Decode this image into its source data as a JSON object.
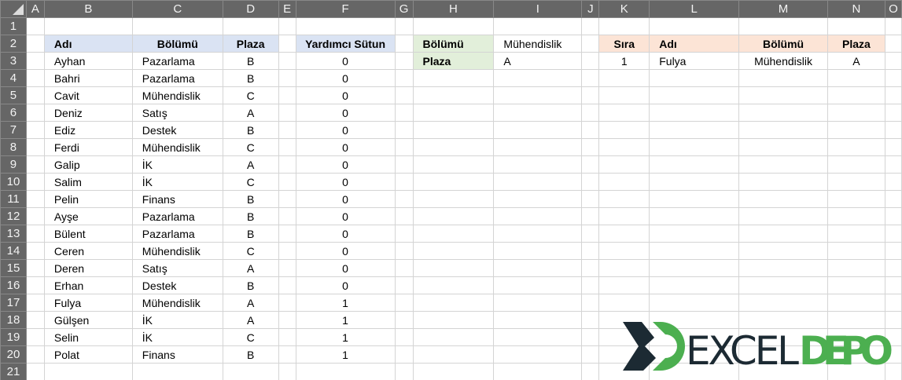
{
  "columns": [
    "A",
    "B",
    "C",
    "D",
    "E",
    "F",
    "G",
    "H",
    "I",
    "J",
    "K",
    "L",
    "M",
    "N",
    "O"
  ],
  "main_table": {
    "headers": [
      "Adı",
      "Bölümü",
      "Plaza",
      "Yardımcı Sütun"
    ],
    "rows": [
      [
        "Ayhan",
        "Pazarlama",
        "B",
        "0"
      ],
      [
        "Bahri",
        "Pazarlama",
        "B",
        "0"
      ],
      [
        "Cavit",
        "Mühendislik",
        "C",
        "0"
      ],
      [
        "Deniz",
        "Satış",
        "A",
        "0"
      ],
      [
        "Ediz",
        "Destek",
        "B",
        "0"
      ],
      [
        "Ferdi",
        "Mühendislik",
        "C",
        "0"
      ],
      [
        "Galip",
        "İK",
        "A",
        "0"
      ],
      [
        "Salim",
        "İK",
        "C",
        "0"
      ],
      [
        "Pelin",
        "Finans",
        "B",
        "0"
      ],
      [
        "Ayşe",
        "Pazarlama",
        "B",
        "0"
      ],
      [
        "Bülent",
        "Pazarlama",
        "B",
        "0"
      ],
      [
        "Ceren",
        "Mühendislik",
        "C",
        "0"
      ],
      [
        "Deren",
        "Satış",
        "A",
        "0"
      ],
      [
        "Erhan",
        "Destek",
        "B",
        "0"
      ],
      [
        "Fulya",
        "Mühendislik",
        "A",
        "1"
      ],
      [
        "Gülşen",
        "İK",
        "A",
        "1"
      ],
      [
        "Selin",
        "İK",
        "C",
        "1"
      ],
      [
        "Polat",
        "Finans",
        "B",
        "1"
      ]
    ]
  },
  "criteria": {
    "rows": [
      [
        "Bölümü",
        "Mühendislik"
      ],
      [
        "Plaza",
        "A"
      ]
    ]
  },
  "result": {
    "headers": [
      "Sıra",
      "Adı",
      "Bölümü",
      "Plaza"
    ],
    "rows": [
      [
        "1",
        "Fulya",
        "Mühendislik",
        "A"
      ]
    ]
  },
  "logo": {
    "text": "EXCELDEPO",
    "dark": "#1c2a33",
    "green": "#4caf50"
  },
  "colors": {
    "header_bg": "#666666",
    "blue": "#dae3f3",
    "green": "#e2efda",
    "orange": "#fce4d6"
  }
}
